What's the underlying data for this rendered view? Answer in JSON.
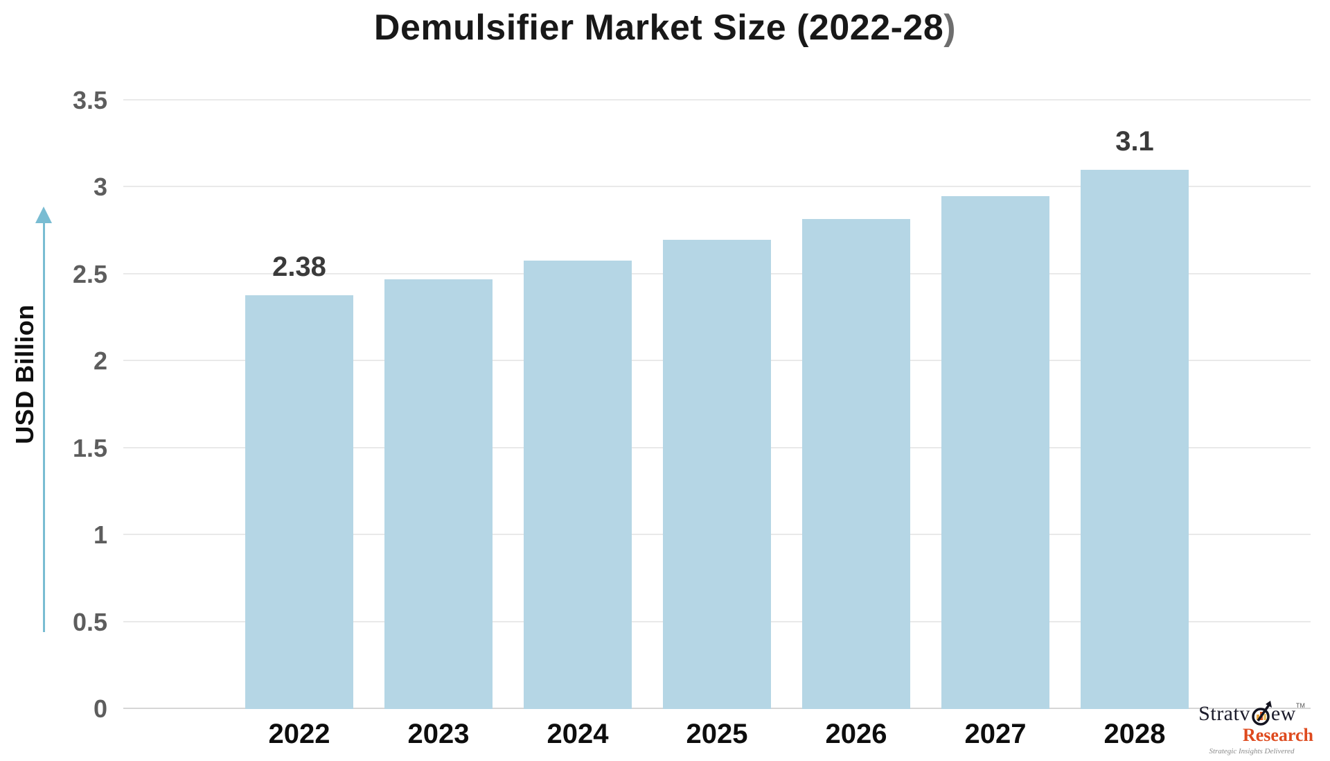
{
  "title": {
    "text_main": "Demulsifier Market Size (2022-28",
    "text_paren": ")"
  },
  "chart_data": {
    "type": "bar",
    "title": "Demulsifier Market Size (2022-28)",
    "xlabel": "",
    "ylabel": "USD Billion",
    "categories": [
      "2022",
      "2023",
      "2024",
      "2025",
      "2026",
      "2027",
      "2028"
    ],
    "values": [
      2.38,
      2.47,
      2.58,
      2.7,
      2.82,
      2.95,
      3.1
    ],
    "bar_labels": [
      "2.38",
      "",
      "",
      "",
      "",
      "",
      "3.1"
    ],
    "ylim": [
      0,
      3.5
    ],
    "yticks": [
      0,
      0.5,
      1,
      1.5,
      2,
      2.5,
      3,
      3.5
    ],
    "ytick_labels": [
      "0",
      "0.5",
      "1",
      "1.5",
      "2",
      "2.5",
      "3",
      "3.5"
    ],
    "grid": true,
    "legend": "none",
    "bar_color": "#b5d6e5",
    "axis_arrow_color": "#79bcd2",
    "tick_color": "#5d5d5d",
    "value_label_color": "#3a3a3a"
  },
  "logo": {
    "brand_pre": "Stratv",
    "brand_post": "ew",
    "tm": "TM",
    "product": "Research",
    "tagline": "Strategic Insights Delivered"
  }
}
